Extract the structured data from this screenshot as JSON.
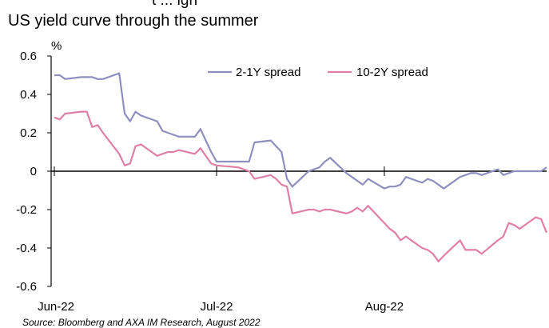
{
  "cut_off_text": "t ... igh",
  "title": "US yield curve through the summer",
  "source": "Source: Bloomberg and AXA IM Research, August 2022",
  "colors": {
    "spread_2_1y": "#8f8fbf",
    "spread_10_2y": "#e07fa6",
    "axis": "#000000"
  },
  "chart_data": {
    "type": "line",
    "title": "US yield curve through the summer",
    "ylabel": "%",
    "ylim": [
      -0.6,
      0.6
    ],
    "yticks": [
      "0.6",
      "0.4",
      "0.2",
      "0",
      "-0.2",
      "-0.4",
      "-0.6"
    ],
    "xlim": [
      "2022-06-01",
      "2022-08-31"
    ],
    "xticks": [
      {
        "label": "Jun-22",
        "date": "2022-06-01"
      },
      {
        "label": "Jul-22",
        "date": "2022-07-01"
      },
      {
        "label": "Aug-22",
        "date": "2022-08-01"
      }
    ],
    "legend_position": "top-right",
    "x": [
      "2022-06-01",
      "2022-06-02",
      "2022-06-03",
      "2022-06-06",
      "2022-06-07",
      "2022-06-08",
      "2022-06-09",
      "2022-06-10",
      "2022-06-13",
      "2022-06-14",
      "2022-06-15",
      "2022-06-16",
      "2022-06-17",
      "2022-06-20",
      "2022-06-21",
      "2022-06-22",
      "2022-06-23",
      "2022-06-24",
      "2022-06-27",
      "2022-06-28",
      "2022-06-29",
      "2022-06-30",
      "2022-07-01",
      "2022-07-05",
      "2022-07-06",
      "2022-07-07",
      "2022-07-08",
      "2022-07-11",
      "2022-07-12",
      "2022-07-13",
      "2022-07-14",
      "2022-07-15",
      "2022-07-18",
      "2022-07-19",
      "2022-07-20",
      "2022-07-21",
      "2022-07-22",
      "2022-07-25",
      "2022-07-26",
      "2022-07-27",
      "2022-07-28",
      "2022-07-29",
      "2022-08-01",
      "2022-08-02",
      "2022-08-03",
      "2022-08-04",
      "2022-08-05",
      "2022-08-08",
      "2022-08-09",
      "2022-08-10",
      "2022-08-11",
      "2022-08-12",
      "2022-08-15",
      "2022-08-16",
      "2022-08-17",
      "2022-08-18",
      "2022-08-19",
      "2022-08-22",
      "2022-08-23",
      "2022-08-24",
      "2022-08-25",
      "2022-08-26",
      "2022-08-29",
      "2022-08-30",
      "2022-08-31"
    ],
    "series": [
      {
        "name": "2-1Y spread",
        "values": [
          0.5,
          0.5,
          0.48,
          0.49,
          0.49,
          0.49,
          0.48,
          0.48,
          0.51,
          0.3,
          0.26,
          0.31,
          0.29,
          0.26,
          0.21,
          0.2,
          0.19,
          0.18,
          0.18,
          0.22,
          0.16,
          0.1,
          0.05,
          0.05,
          0.05,
          0.05,
          0.15,
          0.16,
          0.13,
          0.1,
          -0.04,
          -0.08,
          0.0,
          0.01,
          0.02,
          0.05,
          0.07,
          -0.01,
          -0.03,
          -0.05,
          -0.07,
          -0.04,
          -0.09,
          -0.08,
          -0.08,
          -0.07,
          -0.03,
          -0.06,
          -0.04,
          -0.05,
          -0.07,
          -0.09,
          -0.03,
          -0.02,
          -0.01,
          -0.01,
          -0.02,
          0.01,
          -0.02,
          -0.01,
          0.0,
          0.0,
          0.0,
          0.0,
          0.02
        ]
      },
      {
        "name": "10-2Y spread",
        "values": [
          0.28,
          0.27,
          0.3,
          0.31,
          0.31,
          0.23,
          0.24,
          0.2,
          0.09,
          0.03,
          0.04,
          0.13,
          0.14,
          0.08,
          0.09,
          0.1,
          0.1,
          0.11,
          0.09,
          0.12,
          0.08,
          0.04,
          0.03,
          0.02,
          0.01,
          0.0,
          -0.04,
          -0.02,
          -0.04,
          -0.07,
          -0.08,
          -0.22,
          -0.2,
          -0.2,
          -0.21,
          -0.2,
          -0.2,
          -0.22,
          -0.21,
          -0.19,
          -0.21,
          -0.18,
          -0.27,
          -0.3,
          -0.32,
          -0.36,
          -0.34,
          -0.4,
          -0.41,
          -0.43,
          -0.47,
          -0.44,
          -0.36,
          -0.41,
          -0.41,
          -0.41,
          -0.43,
          -0.36,
          -0.34,
          -0.27,
          -0.28,
          -0.3,
          -0.24,
          -0.25,
          -0.32
        ]
      }
    ]
  }
}
